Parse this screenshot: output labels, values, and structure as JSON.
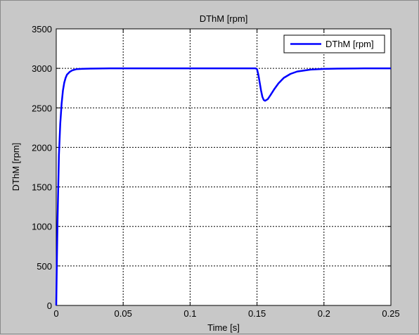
{
  "chart_data": {
    "type": "line",
    "title": "DThM [rpm]",
    "xlabel": "Time [s]",
    "ylabel": "DThM [rpm]",
    "xlim": [
      0,
      0.25
    ],
    "ylim": [
      0,
      3500
    ],
    "xticks": [
      0,
      0.05,
      0.1,
      0.15,
      0.2,
      0.25
    ],
    "xtick_labels": [
      "0",
      "0.05",
      "0.1",
      "0.15",
      "0.2",
      "0.25"
    ],
    "yticks": [
      0,
      500,
      1000,
      1500,
      2000,
      2500,
      3000,
      3500
    ],
    "ytick_labels": [
      "0",
      "500",
      "1000",
      "1500",
      "2000",
      "2500",
      "3000",
      "3500"
    ],
    "grid": true,
    "legend_position": "top-right",
    "series": [
      {
        "name": "DThM [rpm]",
        "color": "#0000ff",
        "x": [
          0,
          0.0005,
          0.001,
          0.0015,
          0.002,
          0.003,
          0.004,
          0.005,
          0.006,
          0.007,
          0.008,
          0.01,
          0.012,
          0.015,
          0.02,
          0.03,
          0.04,
          0.06,
          0.1,
          0.14,
          0.149,
          0.15,
          0.151,
          0.152,
          0.153,
          0.154,
          0.155,
          0.156,
          0.158,
          0.16,
          0.163,
          0.166,
          0.17,
          0.175,
          0.18,
          0.19,
          0.2,
          0.21,
          0.23,
          0.25
        ],
        "y": [
          0,
          600,
          1100,
          1500,
          1900,
          2300,
          2550,
          2720,
          2820,
          2880,
          2920,
          2955,
          2975,
          2990,
          2995,
          2998,
          3000,
          3000,
          3000,
          3000,
          3000,
          2990,
          2920,
          2820,
          2720,
          2640,
          2600,
          2590,
          2610,
          2660,
          2740,
          2810,
          2880,
          2930,
          2960,
          2985,
          2993,
          2997,
          3000,
          3000
        ]
      }
    ]
  }
}
